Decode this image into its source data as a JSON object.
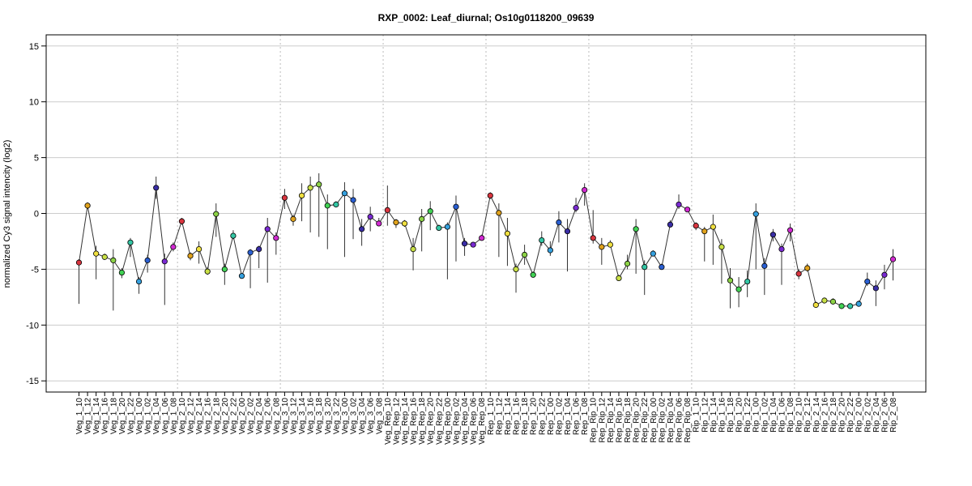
{
  "chart_data": {
    "type": "scatter",
    "title": "RXP_0002: Leaf_diurnal; Os10g0118200_09639",
    "xlabel": "",
    "ylabel": "normalized Cy3 signal intencity (log2)",
    "ylim": [
      -16,
      16
    ],
    "yticks": [
      -15,
      -10,
      -5,
      0,
      5,
      10,
      15
    ],
    "grid": true,
    "connected": true,
    "categories": [
      "Veg_1_10",
      "Veg_1_12",
      "Veg_1_14",
      "Veg_1_16",
      "Veg_1_18",
      "Veg_1_20",
      "Veg_1_22",
      "Veg_1_00",
      "Veg_1_02",
      "Veg_1_04",
      "Veg_1_06",
      "Veg_1_08",
      "Veg_2_10",
      "Veg_2_12",
      "Veg_2_14",
      "Veg_2_16",
      "Veg_2_18",
      "Veg_2_20",
      "Veg_2_22",
      "Veg_2_00",
      "Veg_2_02",
      "Veg_2_04",
      "Veg_2_06",
      "Veg_2_08",
      "Veg_3_10",
      "Veg_3_12",
      "Veg_3_14",
      "Veg_3_16",
      "Veg_3_18",
      "Veg_3_20",
      "Veg_3_22",
      "Veg_3_00",
      "Veg_3_02",
      "Veg_3_04",
      "Veg_3_06",
      "Veg_3_08",
      "Veg_Rep_10",
      "Veg_Rep_12",
      "Veg_Rep_14",
      "Veg_Rep_16",
      "Veg_Rep_18",
      "Veg_Rep_20",
      "Veg_Rep_22",
      "Veg_Rep_00",
      "Veg_Rep_02",
      "Veg_Rep_04",
      "Veg_Rep_06",
      "Veg_Rep_08",
      "Rep_1_10",
      "Rep_1_12",
      "Rep_1_14",
      "Rep_1_16",
      "Rep_1_18",
      "Rep_1_20",
      "Rep_1_22",
      "Rep_1_00",
      "Rep_1_02",
      "Rep_1_04",
      "Rep_1_06",
      "Rep_1_08",
      "Rep_Rip_10",
      "Rep_Rip_12",
      "Rep_Rip_14",
      "Rep_Rip_16",
      "Rep_Rip_18",
      "Rep_Rip_20",
      "Rep_Rip_22",
      "Rep_Rip_00",
      "Rep_Rip_02",
      "Rep_Rip_04",
      "Rep_Rip_06",
      "Rep_Rip_08",
      "Rip_1_10",
      "Rip_1_12",
      "Rip_1_14",
      "Rip_1_16",
      "Rip_1_18",
      "Rip_1_20",
      "Rip_1_22",
      "Rip_1_00",
      "Rip_1_02",
      "Rip_1_04",
      "Rip_1_06",
      "Rip_1_08",
      "Rip_2_10",
      "Rip_2_12",
      "Rip_2_14",
      "Rip_2_16",
      "Rip_2_18",
      "Rip_2_20",
      "Rip_2_22",
      "Rip_2_00",
      "Rip_2_02",
      "Rip_2_04",
      "Rip_2_06",
      "Rip_2_08"
    ],
    "values": [
      -4.4,
      0.7,
      -3.6,
      -3.9,
      -4.2,
      -5.3,
      -2.6,
      -6.1,
      -4.2,
      2.3,
      -4.3,
      -3.0,
      -0.7,
      -3.8,
      -3.2,
      -5.2,
      -0.05,
      -5.0,
      -2.0,
      -5.6,
      -3.5,
      -3.2,
      -1.4,
      -2.2,
      1.4,
      -0.5,
      1.6,
      2.3,
      2.6,
      0.7,
      0.8,
      1.8,
      1.2,
      -1.4,
      -0.3,
      -0.9,
      0.3,
      -0.8,
      -0.9,
      -3.2,
      -0.5,
      0.2,
      -1.3,
      -1.2,
      0.6,
      -2.7,
      -2.8,
      -2.2,
      1.6,
      0.05,
      -1.8,
      -5.0,
      -3.7,
      -5.5,
      -2.4,
      -3.3,
      -0.8,
      -1.6,
      0.5,
      2.1,
      -2.2,
      -3.0,
      -2.8,
      -5.8,
      -4.5,
      -1.4,
      -4.8,
      -3.6,
      -4.8,
      -1.0,
      0.8,
      0.35,
      -1.1,
      -1.6,
      -1.2,
      -3.0,
      -6.0,
      -6.8,
      -6.1,
      -0.05,
      -4.7,
      -1.9,
      -3.2,
      -1.5,
      -5.4,
      -4.9,
      -8.2,
      -7.8,
      -7.9,
      -8.3,
      -8.3,
      -8.1,
      -6.1,
      -6.7,
      -5.5,
      -4.1
    ],
    "err_low": [
      -8.1,
      0.4,
      -5.9,
      -4.1,
      -8.7,
      -5.8,
      -3.9,
      -7.2,
      -5.3,
      1.3,
      -8.2,
      -3.4,
      -1.0,
      -4.2,
      -4.5,
      -5.5,
      -2.1,
      -6.4,
      -2.3,
      -5.7,
      -6.7,
      -4.9,
      -6.2,
      -3.7,
      0.4,
      -1.1,
      -0.7,
      -1.7,
      -2.1,
      -3.2,
      0.6,
      -3.9,
      -2.3,
      -2.9,
      -1.6,
      -1.1,
      -1.1,
      -1.3,
      -1.2,
      -5.1,
      -3.4,
      -1.5,
      -1.5,
      -5.9,
      -4.3,
      -3.8,
      -3.0,
      -2.4,
      1.3,
      -3.9,
      -4.7,
      -7.1,
      -4.6,
      -5.7,
      -2.9,
      -3.8,
      -2.6,
      -5.2,
      0.1,
      0.7,
      -2.7,
      -4.6,
      -3.0,
      -6.0,
      -5.0,
      -5.4,
      -7.3,
      -3.8,
      -5.0,
      -1.2,
      0.4,
      0.2,
      -1.5,
      -4.3,
      -4.6,
      -6.3,
      -8.5,
      -8.4,
      -7.5,
      -5.0,
      -7.3,
      -2.5,
      -6.4,
      -2.5,
      -5.9,
      -5.2,
      -8.4,
      -8.0,
      -8.1,
      -8.5,
      -8.5,
      -8.2,
      -6.5,
      -8.3,
      -6.8,
      -6.0
    ],
    "err_high": [
      -4.1,
      1.0,
      -2.9,
      -3.6,
      -3.2,
      -4.9,
      -2.2,
      -5.7,
      -3.7,
      3.3,
      -3.6,
      -2.6,
      -0.4,
      -3.5,
      -2.5,
      -4.8,
      0.9,
      -4.5,
      -1.5,
      -5.4,
      -3.2,
      -2.9,
      -0.4,
      -1.7,
      2.2,
      -0.1,
      2.7,
      3.3,
      3.6,
      1.7,
      1.1,
      2.8,
      2.2,
      -0.5,
      0.6,
      -0.4,
      2.5,
      -0.5,
      -0.6,
      -2.2,
      0.4,
      1.1,
      -1.0,
      -0.8,
      1.6,
      -2.2,
      -2.6,
      -1.9,
      1.9,
      0.9,
      -0.4,
      -4.5,
      -2.8,
      -5.2,
      -1.6,
      -2.5,
      0.2,
      -0.5,
      1.4,
      2.7,
      0.3,
      -2.2,
      -2.4,
      -5.5,
      -3.7,
      -0.5,
      -4.2,
      -3.3,
      -4.5,
      -0.6,
      1.7,
      0.5,
      -0.8,
      -1.2,
      -0.1,
      -2.3,
      -4.9,
      -5.7,
      -5.1,
      0.9,
      -4.0,
      -1.4,
      -2.7,
      -0.9,
      -5.0,
      -4.5,
      -7.9,
      -7.6,
      -7.6,
      -8.1,
      -8.1,
      -7.8,
      -5.3,
      -6.0,
      -4.6,
      -3.2
    ],
    "colors": [
      "#d9353f",
      "#e0a21c",
      "#f0e040",
      "#c9e046",
      "#8cd246",
      "#41d254",
      "#33c6a4",
      "#35a0de",
      "#2a5fd2",
      "#3a2ea6",
      "#7a2ad2",
      "#d22ad2",
      "#d9353f",
      "#e0a21c",
      "#f0e040",
      "#c9e046",
      "#8cd246",
      "#41d254",
      "#33c6a4",
      "#35a0de",
      "#2a5fd2",
      "#3a2ea6",
      "#7a2ad2",
      "#d22ad2",
      "#d9353f",
      "#e0a21c",
      "#f0e040",
      "#c9e046",
      "#8cd246",
      "#41d254",
      "#33c6a4",
      "#35a0de",
      "#2a5fd2",
      "#3a2ea6",
      "#7a2ad2",
      "#d22ad2",
      "#d9353f",
      "#e0a21c",
      "#f0e040",
      "#c9e046",
      "#8cd246",
      "#41d254",
      "#33c6a4",
      "#35a0de",
      "#2a5fd2",
      "#3a2ea6",
      "#7a2ad2",
      "#d22ad2",
      "#d9353f",
      "#e0a21c",
      "#f0e040",
      "#c9e046",
      "#8cd246",
      "#41d254",
      "#33c6a4",
      "#35a0de",
      "#2a5fd2",
      "#3a2ea6",
      "#7a2ad2",
      "#d22ad2",
      "#d9353f",
      "#e0a21c",
      "#f0e040",
      "#c9e046",
      "#8cd246",
      "#41d254",
      "#33c6a4",
      "#35a0de",
      "#2a5fd2",
      "#3a2ea6",
      "#7a2ad2",
      "#d22ad2",
      "#d9353f",
      "#e0a21c",
      "#f0e040",
      "#c9e046",
      "#8cd246",
      "#41d254",
      "#33c6a4",
      "#35a0de",
      "#2a5fd2",
      "#3a2ea6",
      "#7a2ad2",
      "#d22ad2",
      "#d9353f",
      "#e0a21c",
      "#f0e040",
      "#c9e046",
      "#8cd246",
      "#41d254",
      "#33c6a4",
      "#35a0de",
      "#2a5fd2",
      "#3a2ea6",
      "#7a2ad2",
      "#d22ad2"
    ],
    "group_separators_after": [
      "Veg_1_08",
      "Veg_2_08",
      "Veg_3_08",
      "Veg_Rep_08",
      "Rep_1_08",
      "Rep_Rip_08",
      "Rip_1_08"
    ]
  }
}
